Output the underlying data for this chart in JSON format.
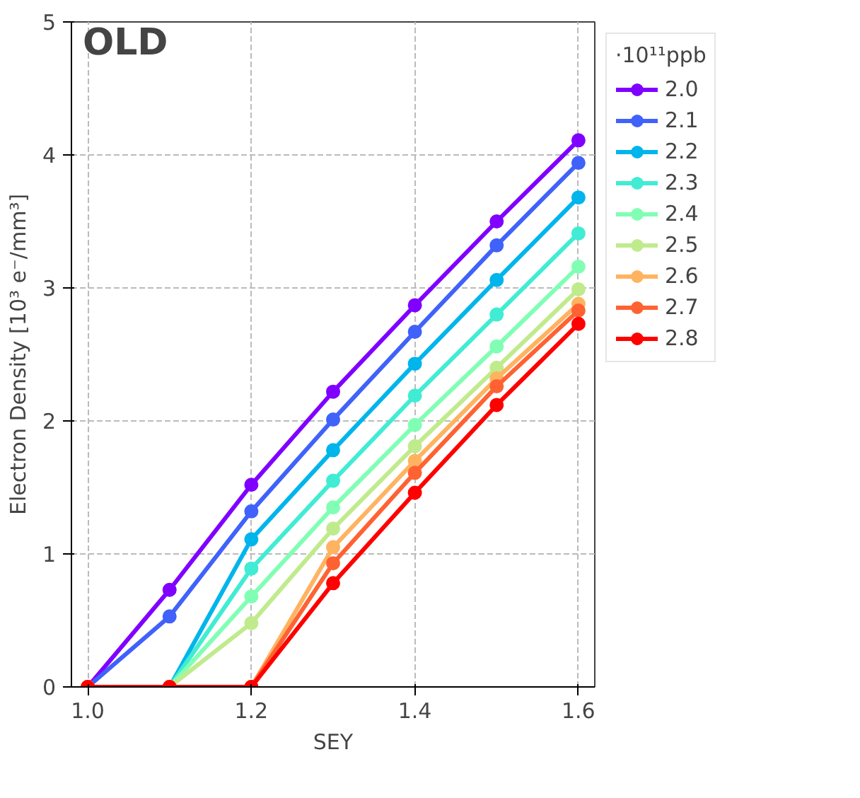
{
  "chart_data": {
    "type": "line",
    "xlabel": "SEY",
    "ylabel": "Electron Density [10³ e⁻/mm³]",
    "legend_title": "·10¹¹ppb",
    "annotations": [
      "OLD"
    ],
    "x": [
      1.0,
      1.1,
      1.2,
      1.3,
      1.4,
      1.5,
      1.6
    ],
    "xlim": [
      0.98,
      1.62
    ],
    "ylim": [
      0,
      5
    ],
    "xticks": [
      {
        "value": 1.0,
        "label": "1.0"
      },
      {
        "value": 1.2,
        "label": "1.2"
      },
      {
        "value": 1.4,
        "label": "1.4"
      },
      {
        "value": 1.6,
        "label": "1.6"
      }
    ],
    "yticks": [
      0,
      1,
      2,
      3,
      4,
      5
    ],
    "grid": true,
    "legend": "right",
    "marker": "circle",
    "line_style": "solid",
    "series": [
      {
        "name": "2.0",
        "color": "#8000ff",
        "values": [
          0,
          0.73,
          1.52,
          2.22,
          2.87,
          3.5,
          4.11
        ]
      },
      {
        "name": "2.1",
        "color": "#4062fa",
        "values": [
          0,
          0.53,
          1.32,
          2.01,
          2.67,
          3.32,
          3.94
        ]
      },
      {
        "name": "2.2",
        "color": "#00b5eb",
        "values": [
          0,
          0,
          1.11,
          1.78,
          2.43,
          3.06,
          3.68
        ]
      },
      {
        "name": "2.3",
        "color": "#40ecd4",
        "values": [
          0,
          0,
          0.89,
          1.55,
          2.19,
          2.8,
          3.41
        ]
      },
      {
        "name": "2.4",
        "color": "#80ffb4",
        "values": [
          0,
          0,
          0.68,
          1.35,
          1.97,
          2.56,
          3.16
        ]
      },
      {
        "name": "2.5",
        "color": "#c0eb8d",
        "values": [
          0,
          0,
          0.48,
          1.19,
          1.81,
          2.4,
          2.99
        ]
      },
      {
        "name": "2.6",
        "color": "#ffb360",
        "values": [
          0,
          0,
          0,
          1.05,
          1.7,
          2.32,
          2.88
        ]
      },
      {
        "name": "2.7",
        "color": "#ff6232",
        "values": [
          0,
          0,
          0,
          0.93,
          1.61,
          2.26,
          2.83
        ]
      },
      {
        "name": "2.8",
        "color": "#ff0000",
        "values": [
          0,
          0,
          0,
          0.78,
          1.46,
          2.12,
          2.73
        ]
      }
    ]
  }
}
